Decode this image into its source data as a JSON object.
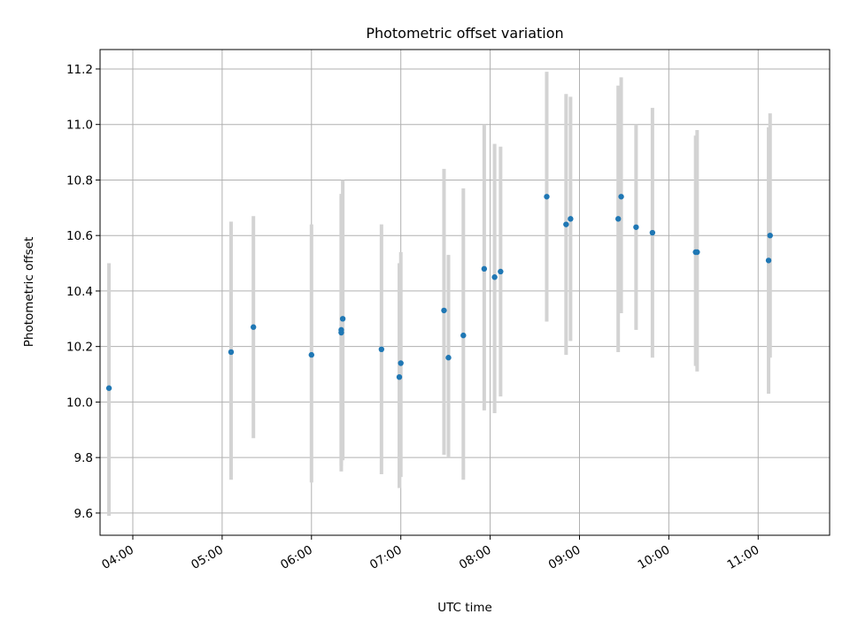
{
  "chart_data": {
    "type": "scatter",
    "title": "Photometric offset variation",
    "xlabel": "UTC time",
    "ylabel": "Photometric offset",
    "x_is_time": true,
    "xlim": [
      "03:38",
      "11:48"
    ],
    "ylim": [
      9.52,
      11.27
    ],
    "x_ticks": [
      "04:00",
      "05:00",
      "06:00",
      "07:00",
      "08:00",
      "09:00",
      "10:00",
      "11:00"
    ],
    "y_ticks": [
      "9.6",
      "9.8",
      "10.0",
      "10.2",
      "10.4",
      "10.6",
      "10.8",
      "11.0",
      "11.2"
    ],
    "grid": true,
    "point_color": "#1f77b4",
    "errorbar_color": "#d3d3d3",
    "series": [
      {
        "points": [
          {
            "x": "03:44",
            "y": 10.05,
            "lo": 9.59,
            "hi": 10.5
          },
          {
            "x": "05:06",
            "y": 10.18,
            "lo": 9.72,
            "hi": 10.65
          },
          {
            "x": "05:21",
            "y": 10.27,
            "lo": 9.87,
            "hi": 10.67
          },
          {
            "x": "06:00",
            "y": 10.17,
            "lo": 9.71,
            "hi": 10.64
          },
          {
            "x": "06:20",
            "y": 10.25,
            "lo": 9.75,
            "hi": 10.74
          },
          {
            "x": "06:20",
            "y": 10.26,
            "lo": 9.77,
            "hi": 10.75
          },
          {
            "x": "06:21",
            "y": 10.3,
            "lo": 9.79,
            "hi": 10.8
          },
          {
            "x": "06:47",
            "y": 10.19,
            "lo": 9.74,
            "hi": 10.64
          },
          {
            "x": "06:59",
            "y": 10.09,
            "lo": 9.69,
            "hi": 10.5
          },
          {
            "x": "07:00",
            "y": 10.14,
            "lo": 9.73,
            "hi": 10.54
          },
          {
            "x": "07:29",
            "y": 10.33,
            "lo": 9.81,
            "hi": 10.84
          },
          {
            "x": "07:32",
            "y": 10.16,
            "lo": 9.8,
            "hi": 10.53
          },
          {
            "x": "07:42",
            "y": 10.24,
            "lo": 9.72,
            "hi": 10.77
          },
          {
            "x": "07:56",
            "y": 10.48,
            "lo": 9.97,
            "hi": 11.0
          },
          {
            "x": "08:03",
            "y": 10.45,
            "lo": 9.96,
            "hi": 10.93
          },
          {
            "x": "08:07",
            "y": 10.47,
            "lo": 10.02,
            "hi": 10.92
          },
          {
            "x": "08:38",
            "y": 10.74,
            "lo": 10.29,
            "hi": 11.19
          },
          {
            "x": "08:51",
            "y": 10.64,
            "lo": 10.17,
            "hi": 11.11
          },
          {
            "x": "08:54",
            "y": 10.66,
            "lo": 10.22,
            "hi": 11.1
          },
          {
            "x": "09:26",
            "y": 10.66,
            "lo": 10.18,
            "hi": 11.14
          },
          {
            "x": "09:28",
            "y": 10.74,
            "lo": 10.32,
            "hi": 11.17
          },
          {
            "x": "09:38",
            "y": 10.63,
            "lo": 10.26,
            "hi": 11.0
          },
          {
            "x": "09:49",
            "y": 10.61,
            "lo": 10.16,
            "hi": 11.06
          },
          {
            "x": "10:18",
            "y": 10.54,
            "lo": 10.13,
            "hi": 10.96
          },
          {
            "x": "10:19",
            "y": 10.54,
            "lo": 10.11,
            "hi": 10.98
          },
          {
            "x": "11:07",
            "y": 10.51,
            "lo": 10.03,
            "hi": 10.99
          },
          {
            "x": "11:08",
            "y": 10.6,
            "lo": 10.16,
            "hi": 11.04
          }
        ]
      }
    ]
  }
}
